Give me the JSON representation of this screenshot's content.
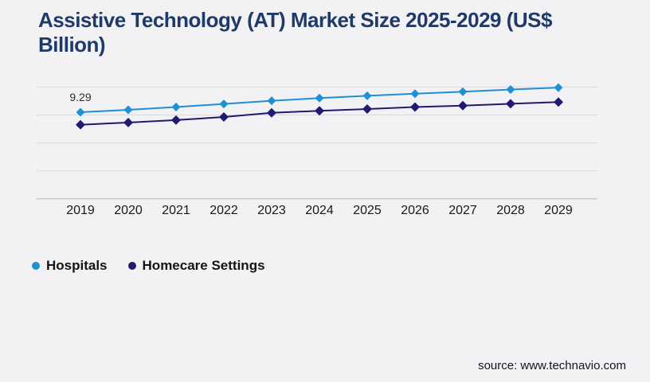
{
  "page": {
    "background": "#f2f2f4"
  },
  "header": {
    "title_lines": [
      "Assistive Technology (AT) Market Size 2025-2029 (US$",
      "Billion)"
    ],
    "title_color": "#1f3a68"
  },
  "chart_data": {
    "type": "line",
    "title": "Assistive Technology (AT) Market Size 2025-2029 (US$ Billion)",
    "x": [
      2019,
      2020,
      2021,
      2022,
      2023,
      2024,
      2025,
      2026,
      2027,
      2028,
      2029
    ],
    "series": [
      {
        "name": "Hospitals",
        "color": "#1e90d6",
        "marker": "diamond",
        "values": [
          9.29,
          9.55,
          9.85,
          10.18,
          10.52,
          10.8,
          11.05,
          11.28,
          11.5,
          11.73,
          11.93
        ]
      },
      {
        "name": "Homecare Settings",
        "color": "#201b70",
        "marker": "diamond",
        "values": [
          7.95,
          8.18,
          8.45,
          8.78,
          9.22,
          9.45,
          9.63,
          9.85,
          10.0,
          10.2,
          10.38
        ]
      }
    ],
    "ylim": [
      0,
      12
    ],
    "gridline_step": 3,
    "grid": true,
    "y_axis_labels_visible": false,
    "legend_position": "bottom-left",
    "annotations": [
      {
        "series": "Hospitals",
        "x": 2019,
        "text": "9.29"
      }
    ],
    "gridline_color": "#d9d9d9",
    "axis_line_color": "#bfbfbf",
    "tick_label_color": "#191919",
    "annotation_color": "#2e2e2e"
  },
  "legend": {
    "items": [
      {
        "label": "Hospitals",
        "color": "#1e90d6"
      },
      {
        "label": "Homecare Settings",
        "color": "#201b70"
      }
    ]
  },
  "footer": {
    "source": "source: www.technavio.com"
  }
}
